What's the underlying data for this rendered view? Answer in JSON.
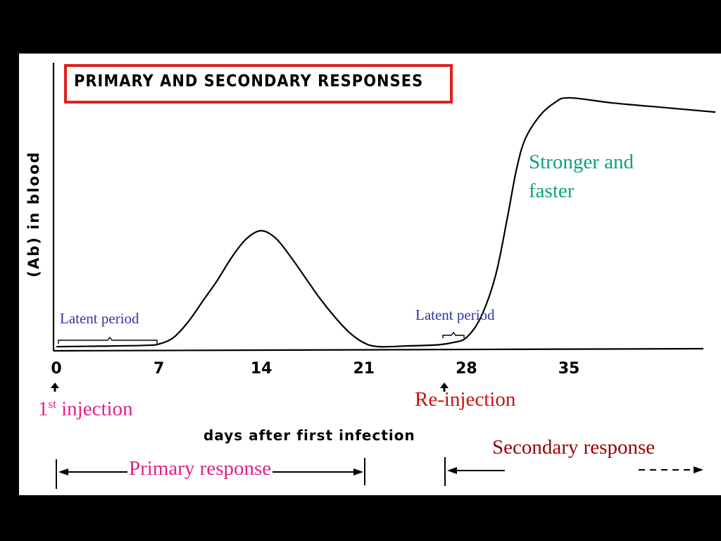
{
  "chart_data": {
    "type": "line",
    "title": "PRIMARY AND SECONDARY RESPONSES",
    "xlabel": "days after first infection",
    "ylabel": "(Ab) in blood",
    "x_ticks": [
      "0",
      "7",
      "14",
      "21",
      "28",
      "35"
    ],
    "xlim": [
      0,
      45
    ],
    "ylim": [
      0,
      100
    ],
    "series": [
      {
        "points": [
          [
            0,
            0.5
          ],
          [
            3,
            0.7
          ],
          [
            6,
            1
          ],
          [
            7,
            1.5
          ],
          [
            8,
            4
          ],
          [
            9,
            10
          ],
          [
            10,
            18
          ],
          [
            11,
            26
          ],
          [
            12,
            35
          ],
          [
            13,
            42
          ],
          [
            14,
            45
          ],
          [
            15,
            42
          ],
          [
            16,
            35
          ],
          [
            17,
            27
          ],
          [
            18,
            19
          ],
          [
            19,
            12
          ],
          [
            20,
            6
          ],
          [
            21,
            2
          ],
          [
            22,
            0.5
          ],
          [
            24,
            0.8
          ],
          [
            26,
            1.2
          ],
          [
            27,
            2
          ],
          [
            28,
            4
          ],
          [
            29,
            12
          ],
          [
            30,
            28
          ],
          [
            30.8,
            50
          ],
          [
            31.4,
            68
          ],
          [
            32,
            80
          ],
          [
            33,
            89
          ],
          [
            34,
            94
          ],
          [
            35,
            96
          ],
          [
            38,
            94
          ],
          [
            42,
            92
          ],
          [
            45,
            90.5
          ]
        ]
      }
    ],
    "grid": false,
    "colors": {
      "curve": "#000000",
      "title_frame": "#e02020"
    }
  },
  "annotations": {
    "latent_period_1": "Latent period",
    "latent_period_2": "Latent period",
    "stronger_line1": "Stronger and",
    "stronger_line2": "faster",
    "first_injection_num": "1",
    "first_injection_sup": "st",
    "first_injection_text": " injection",
    "reinjection": "Re-injection",
    "primary_response": "Primary response",
    "secondary_response": "Secondary response"
  },
  "colors": {
    "latent": "#3333aa",
    "stronger": "#10a080",
    "injection": "#e0208a",
    "reinjection": "#cc1010",
    "primary": "#e0208a",
    "secondary": "#990000"
  }
}
